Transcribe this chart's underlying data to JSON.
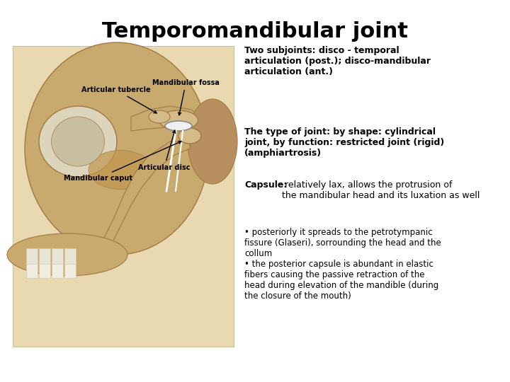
{
  "title": "Temporomandibular joint",
  "title_fontsize": 22,
  "title_fontweight": "bold",
  "background_color": "#ffffff",
  "text_color": "#000000",
  "labels": {
    "articular_tubercle": "Articular tubercle",
    "mandibular_fossa": "Mandibular fossa",
    "mandibular_caput": "Mandibular caput",
    "articular_disc": "Articular disc"
  },
  "text_block_1": "Two subjoints: disco - temporal\narticulation (post.); disco-mandibular\narticulation (ant.)",
  "text_block_2": "The type of joint: by shape: cylindrical\njoint, by function: restricted joint (rigid)\n(amphiartrosis)",
  "text_block_3_bold": "Capsule:",
  "text_block_3_rest": " relatively lax, allows the protrusion of\nthe mandibular head and its luxation as well",
  "text_block_4": "• posteriorly it spreads to the petrotympanic\nfissure (Glaseri), sorrounding the head and the\ncollum\n• the posterior capsule is abundant in elastic\nfibers causing the passive retraction of the\nhead during elevation of the mandible (during\nthe closure of the mouth)",
  "label_fontsize": 7,
  "body_fontsize": 9,
  "label_color": "#000000",
  "skull_bg": "#e8d9b0",
  "skull_body": "#c8a96e",
  "skull_dark": "#a07840",
  "skull_light": "#d4bc88",
  "disc_color": "#f0f0f0",
  "disc_edge": "#888888"
}
